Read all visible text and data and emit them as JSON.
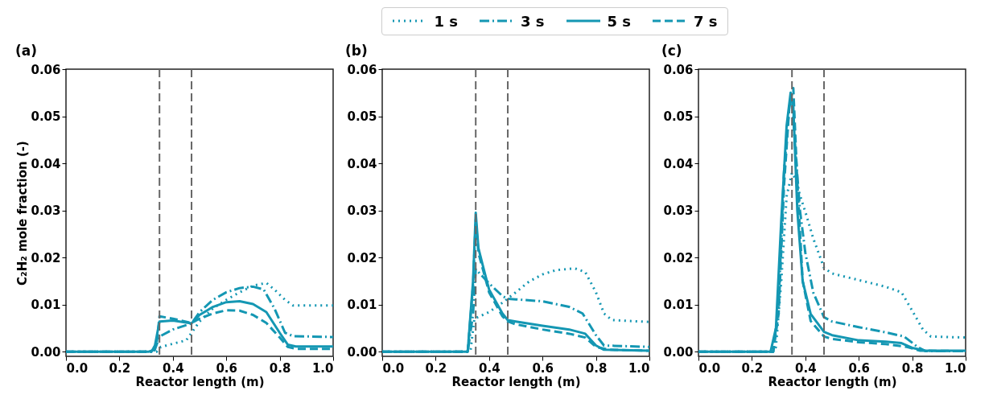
{
  "chart_data": [
    {
      "type": "line",
      "title": "(a)",
      "xlabel": "Reactor length (m)",
      "ylabel": "C₂H₂ mole fraction (-)",
      "legend": "top",
      "grid": false,
      "xlim": [
        0,
        1
      ],
      "ylim": [
        -0.001,
        0.06
      ],
      "xticks": [
        {
          "value": 0,
          "label": "0.0"
        },
        {
          "value": 0.2,
          "label": "0.2"
        },
        {
          "value": 0.4,
          "label": "0.4"
        },
        {
          "value": 0.6,
          "label": "0.6"
        },
        {
          "value": 0.8,
          "label": "0.8"
        },
        {
          "value": 1,
          "label": "1.0"
        }
      ],
      "yticks": [
        {
          "value": 0,
          "label": "0.00"
        },
        {
          "value": 0.01,
          "label": "0.01"
        },
        {
          "value": 0.02,
          "label": "0.02"
        },
        {
          "value": 0.03,
          "label": "0.03"
        },
        {
          "value": 0.04,
          "label": "0.04"
        },
        {
          "value": 0.05,
          "label": "0.05"
        },
        {
          "value": 0.06,
          "label": "0.06"
        }
      ],
      "ref_lines": [
        {
          "axis": "x",
          "value": 0.35,
          "color": "#666666",
          "line_style": "dashed"
        },
        {
          "axis": "x",
          "value": 0.47,
          "color": "#666666",
          "line_style": "dashed"
        }
      ],
      "series": [
        {
          "name": "1 s",
          "color": "#1497b3",
          "line_style": "dotted",
          "x": [
            0,
            0.34,
            0.355,
            0.45,
            0.5,
            0.55,
            0.6,
            0.65,
            0.7,
            0.75,
            0.78,
            0.82,
            0.85,
            1.0
          ],
          "values": [
            0,
            0,
            0.001,
            0.0024,
            0.0064,
            0.0092,
            0.011,
            0.0126,
            0.014,
            0.0146,
            0.0132,
            0.011,
            0.0098,
            0.0098
          ]
        },
        {
          "name": "3 s",
          "color": "#1497b3",
          "line_style": "dashdot",
          "x": [
            0,
            0.33,
            0.35,
            0.4,
            0.47,
            0.5,
            0.55,
            0.6,
            0.65,
            0.7,
            0.74,
            0.78,
            0.82,
            0.85,
            1.0
          ],
          "values": [
            0,
            0,
            0.0032,
            0.0047,
            0.006,
            0.0084,
            0.011,
            0.0126,
            0.0135,
            0.0138,
            0.0132,
            0.0092,
            0.004,
            0.0033,
            0.0031
          ]
        },
        {
          "name": "5 s",
          "color": "#1497b3",
          "line_style": "solid",
          "x": [
            0,
            0.31,
            0.33,
            0.35,
            0.4,
            0.47,
            0.5,
            0.55,
            0.6,
            0.65,
            0.7,
            0.75,
            0.8,
            0.83,
            0.86,
            1.0
          ],
          "values": [
            0,
            0,
            0.0004,
            0.0064,
            0.0066,
            0.006,
            0.0078,
            0.0095,
            0.0105,
            0.0107,
            0.0101,
            0.0084,
            0.004,
            0.0015,
            0.0011,
            0.0011
          ]
        },
        {
          "name": "7 s",
          "color": "#1497b3",
          "line_style": "dashed",
          "x": [
            0,
            0.32,
            0.34,
            0.35,
            0.4,
            0.47,
            0.5,
            0.55,
            0.6,
            0.65,
            0.7,
            0.75,
            0.8,
            0.83,
            0.86,
            1.0
          ],
          "values": [
            0,
            0,
            0.002,
            0.0075,
            0.007,
            0.0061,
            0.007,
            0.0081,
            0.0088,
            0.0087,
            0.0078,
            0.0061,
            0.003,
            0.001,
            0.0006,
            0.0006
          ]
        }
      ]
    },
    {
      "type": "line",
      "title": "(b)",
      "xlabel": "Reactor length (m)",
      "grid": false,
      "xlim": [
        0,
        1
      ],
      "ylim": [
        -0.001,
        0.06
      ],
      "xticks": [
        {
          "value": 0,
          "label": "0.0"
        },
        {
          "value": 0.2,
          "label": "0.2"
        },
        {
          "value": 0.4,
          "label": "0.4"
        },
        {
          "value": 0.6,
          "label": "0.6"
        },
        {
          "value": 0.8,
          "label": "0.8"
        },
        {
          "value": 1,
          "label": "1.0"
        }
      ],
      "yticks": [
        {
          "value": 0,
          "label": "0.00"
        },
        {
          "value": 0.01,
          "label": "0.01"
        },
        {
          "value": 0.02,
          "label": "0.02"
        },
        {
          "value": 0.03,
          "label": "0.03"
        },
        {
          "value": 0.04,
          "label": "0.04"
        },
        {
          "value": 0.05,
          "label": "0.05"
        },
        {
          "value": 0.06,
          "label": "0.06"
        }
      ],
      "ref_lines": [
        {
          "axis": "x",
          "value": 0.35,
          "color": "#666666",
          "line_style": "dashed"
        },
        {
          "axis": "x",
          "value": 0.47,
          "color": "#666666",
          "line_style": "dashed"
        }
      ],
      "series": [
        {
          "name": "1 s",
          "color": "#1497b3",
          "line_style": "dotted",
          "x": [
            0,
            0.33,
            0.345,
            0.4,
            0.45,
            0.5,
            0.55,
            0.6,
            0.65,
            0.72,
            0.76,
            0.8,
            0.83,
            0.86,
            1.0
          ],
          "values": [
            0,
            0,
            0.007,
            0.0084,
            0.0104,
            0.0126,
            0.0149,
            0.0164,
            0.0173,
            0.0177,
            0.0169,
            0.0126,
            0.0081,
            0.0067,
            0.0063
          ]
        },
        {
          "name": "3 s",
          "color": "#1497b3",
          "line_style": "dashdot",
          "x": [
            0,
            0.32,
            0.34,
            0.35,
            0.4,
            0.45,
            0.47,
            0.5,
            0.6,
            0.7,
            0.75,
            0.8,
            0.83,
            1.0
          ],
          "values": [
            0,
            0,
            0.008,
            0.0175,
            0.0145,
            0.0118,
            0.0112,
            0.0111,
            0.0107,
            0.0095,
            0.0081,
            0.0035,
            0.0013,
            0.001
          ]
        },
        {
          "name": "5 s",
          "color": "#1497b3",
          "line_style": "solid",
          "x": [
            0,
            0.32,
            0.34,
            0.35,
            0.36,
            0.38,
            0.4,
            0.45,
            0.47,
            0.5,
            0.6,
            0.7,
            0.76,
            0.8,
            0.83,
            1.0
          ],
          "values": [
            0,
            0,
            0.015,
            0.0295,
            0.022,
            0.0175,
            0.0132,
            0.0081,
            0.0067,
            0.0064,
            0.0055,
            0.0047,
            0.0038,
            0.0013,
            0.0004,
            0.0002
          ]
        },
        {
          "name": "7 s",
          "color": "#1497b3",
          "line_style": "dashed",
          "x": [
            0,
            0.32,
            0.34,
            0.35,
            0.36,
            0.4,
            0.45,
            0.47,
            0.5,
            0.6,
            0.7,
            0.76,
            0.8,
            0.85,
            1.0
          ],
          "values": [
            0,
            0,
            0.014,
            0.028,
            0.021,
            0.0126,
            0.0075,
            0.0064,
            0.0058,
            0.0047,
            0.0038,
            0.003,
            0.001,
            0.0004,
            0.0002
          ]
        }
      ]
    },
    {
      "type": "line",
      "title": "(c)",
      "xlabel": "Reactor length (m)",
      "grid": false,
      "xlim": [
        0,
        1
      ],
      "ylim": [
        -0.001,
        0.06
      ],
      "xticks": [
        {
          "value": 0,
          "label": "0.0"
        },
        {
          "value": 0.2,
          "label": "0.2"
        },
        {
          "value": 0.4,
          "label": "0.4"
        },
        {
          "value": 0.6,
          "label": "0.6"
        },
        {
          "value": 0.8,
          "label": "0.8"
        },
        {
          "value": 1,
          "label": "1.0"
        }
      ],
      "yticks": [
        {
          "value": 0,
          "label": "0.00"
        },
        {
          "value": 0.01,
          "label": "0.01"
        },
        {
          "value": 0.02,
          "label": "0.02"
        },
        {
          "value": 0.03,
          "label": "0.03"
        },
        {
          "value": 0.04,
          "label": "0.04"
        },
        {
          "value": 0.05,
          "label": "0.05"
        },
        {
          "value": 0.06,
          "label": "0.06"
        }
      ],
      "ref_lines": [
        {
          "axis": "x",
          "value": 0.35,
          "color": "#666666",
          "line_style": "dashed"
        },
        {
          "axis": "x",
          "value": 0.47,
          "color": "#666666",
          "line_style": "dashed"
        }
      ],
      "series": [
        {
          "name": "1 s",
          "color": "#1497b3",
          "line_style": "dotted",
          "x": [
            0,
            0.28,
            0.29,
            0.31,
            0.33,
            0.35,
            0.36,
            0.37,
            0.38,
            0.4,
            0.43,
            0.47,
            0.5,
            0.6,
            0.7,
            0.76,
            0.8,
            0.84,
            0.87,
            1.0
          ],
          "values": [
            0,
            0,
            0.001,
            0.015,
            0.033,
            0.038,
            0.037,
            0.0354,
            0.0332,
            0.0297,
            0.024,
            0.0178,
            0.0166,
            0.0152,
            0.0138,
            0.0126,
            0.0087,
            0.0047,
            0.0032,
            0.003
          ]
        },
        {
          "name": "3 s",
          "color": "#1497b3",
          "line_style": "dashdot",
          "x": [
            0,
            0.28,
            0.3,
            0.32,
            0.34,
            0.35,
            0.36,
            0.38,
            0.4,
            0.43,
            0.47,
            0.5,
            0.6,
            0.7,
            0.77,
            0.82,
            0.85,
            1.0
          ],
          "values": [
            0,
            0,
            0.01,
            0.038,
            0.052,
            0.054,
            0.045,
            0.03,
            0.021,
            0.0125,
            0.0073,
            0.0064,
            0.0052,
            0.0041,
            0.0032,
            0.001,
            0.0001,
            0.0001
          ]
        },
        {
          "name": "5 s",
          "color": "#1497b3",
          "line_style": "solid",
          "x": [
            0,
            0.27,
            0.29,
            0.31,
            0.33,
            0.345,
            0.355,
            0.37,
            0.39,
            0.42,
            0.47,
            0.5,
            0.6,
            0.7,
            0.76,
            0.8,
            0.85,
            1.0
          ],
          "values": [
            0,
            0,
            0.005,
            0.028,
            0.048,
            0.055,
            0.052,
            0.03,
            0.015,
            0.008,
            0.0042,
            0.0035,
            0.0024,
            0.0021,
            0.0018,
            0.0008,
            0.0002,
            0.0002
          ]
        },
        {
          "name": "7 s",
          "color": "#1497b3",
          "line_style": "dashed",
          "x": [
            0,
            0.28,
            0.3,
            0.32,
            0.34,
            0.355,
            0.37,
            0.39,
            0.42,
            0.47,
            0.5,
            0.6,
            0.7,
            0.78,
            0.83,
            1.0
          ],
          "values": [
            0,
            0,
            0.008,
            0.035,
            0.052,
            0.056,
            0.036,
            0.015,
            0.0065,
            0.0032,
            0.0027,
            0.002,
            0.0016,
            0.001,
            0.0002,
            0.0001
          ]
        }
      ]
    }
  ]
}
